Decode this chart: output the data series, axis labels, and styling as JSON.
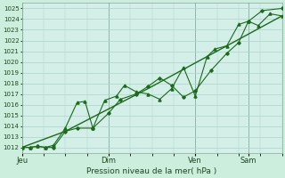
{
  "xlabel": "Pression niveau de la mer( hPa )",
  "bg_color": "#cceedd",
  "plot_bg_color": "#d4eee8",
  "grid_color": "#b0d4cc",
  "line_color": "#1a6b1a",
  "vline_color": "#4a7a6a",
  "ylim": [
    1011.5,
    1025.5
  ],
  "xlim": [
    0,
    264
  ],
  "xtick_labels": [
    "Jeu",
    "Dim",
    "Ven",
    "Sam"
  ],
  "xtick_positions": [
    0,
    88,
    176,
    230
  ],
  "ytick_vals": [
    1012,
    1013,
    1014,
    1015,
    1016,
    1017,
    1018,
    1019,
    1020,
    1021,
    1022,
    1023,
    1024,
    1025
  ],
  "series1_x": [
    0,
    8,
    16,
    24,
    32,
    44,
    56,
    64,
    72,
    84,
    96,
    104,
    116,
    128,
    140,
    152,
    164,
    176,
    188,
    196,
    208,
    220,
    230,
    240,
    252,
    264
  ],
  "series1_y": [
    1012.0,
    1012.0,
    1012.1,
    1012.0,
    1012.2,
    1013.8,
    1016.2,
    1016.3,
    1013.8,
    1016.4,
    1016.8,
    1017.8,
    1017.2,
    1017.0,
    1016.5,
    1017.5,
    1019.5,
    1016.8,
    1020.5,
    1021.2,
    1021.5,
    1023.5,
    1023.8,
    1023.4,
    1024.5,
    1024.3
  ],
  "series2_x": [
    0,
    8,
    16,
    24,
    32,
    44,
    56,
    72,
    88,
    100,
    116,
    128,
    140,
    152,
    164,
    176,
    192,
    208,
    220,
    230,
    244,
    264
  ],
  "series2_y": [
    1012.0,
    1012.0,
    1012.1,
    1012.0,
    1012.0,
    1013.5,
    1013.8,
    1013.8,
    1015.2,
    1016.5,
    1017.0,
    1017.7,
    1018.5,
    1017.8,
    1016.7,
    1017.3,
    1019.2,
    1020.8,
    1021.8,
    1023.8,
    1024.8,
    1025.0
  ],
  "series3_x": [
    0,
    44,
    128,
    208,
    264
  ],
  "series3_y": [
    1012.0,
    1013.5,
    1017.5,
    1021.5,
    1024.3
  ]
}
